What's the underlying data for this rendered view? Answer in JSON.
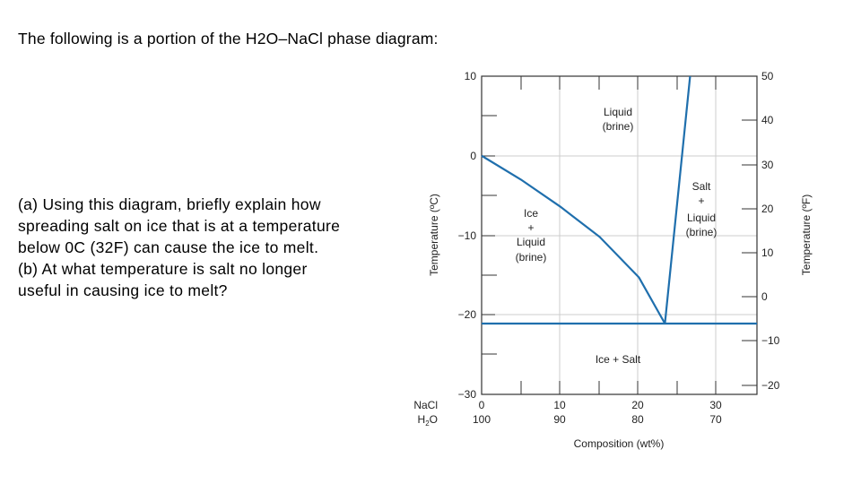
{
  "slide": {
    "heading": "The following is a portion of the H2O–NaCl phase diagram:",
    "question_a": [
      "(a) Using this diagram, briefly explain how",
      "spreading salt on ice that is at a temperature",
      "below 0C (32F) can cause the ice to melt."
    ],
    "question_b": [
      "(b) At what temperature is salt no longer",
      "useful in causing ice to melt?"
    ]
  },
  "diagram": {
    "left_axis": {
      "label": "Temperature (ºC)",
      "ticks": [
        "10",
        "0",
        "−10",
        "−20",
        "−30"
      ],
      "range": [
        -30,
        10
      ]
    },
    "right_axis": {
      "label": "Temperature (ºF)",
      "ticks": [
        "50",
        "40",
        "30",
        "20",
        "10",
        "0",
        "−10",
        "−20"
      ],
      "range": [
        -22,
        50
      ]
    },
    "bottom_axis": {
      "label": "Composition (wt%)",
      "nacl_label": "NaCl",
      "h2o_label": "H",
      "h2o_subscript": "2",
      "h2o_suffix": "O",
      "nacl_ticks": [
        "0",
        "10",
        "20",
        "30"
      ],
      "h2o_ticks": [
        "100",
        "90",
        "80",
        "70"
      ],
      "range": [
        0,
        35
      ]
    },
    "regions": {
      "liquid": [
        "Liquid",
        "(brine)"
      ],
      "ice_liquid": [
        "Ice",
        "+",
        "Liquid",
        "(brine)"
      ],
      "salt_liquid": [
        "Salt",
        "+",
        "Liquid",
        "(brine)"
      ],
      "ice_salt": "Ice + Salt"
    },
    "curves": {
      "liquidus_ice": [
        [
          0,
          0
        ],
        [
          5,
          -3
        ],
        [
          10,
          -6.4
        ],
        [
          15,
          -10.2
        ],
        [
          20,
          -15.3
        ],
        [
          23.3,
          -21.1
        ]
      ],
      "liquidus_salt": [
        [
          23.3,
          -21.1
        ],
        [
          26.5,
          10
        ]
      ],
      "eutectic_temperature": -21.1,
      "eutectic_composition": 23.3
    },
    "colors": {
      "curve": "#1f6fad",
      "grid": "#cccccc",
      "axis": "#333333"
    }
  }
}
